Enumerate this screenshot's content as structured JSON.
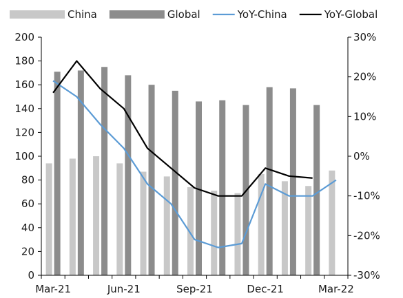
{
  "chart_data": {
    "type": "bar",
    "categories": [
      "Mar-21",
      "Apr-21",
      "May-21",
      "Jun-21",
      "Jul-21",
      "Aug-21",
      "Sep-21",
      "Oct-21",
      "Nov-21",
      "Dec-21",
      "Jan-22",
      "Feb-22",
      "Mar-22"
    ],
    "x_tick_labels": [
      "Mar-21",
      "Jun-21",
      "Sep-21",
      "Dec-21",
      "Mar-22"
    ],
    "ylim_left": [
      0,
      200
    ],
    "yticks_left": [
      0,
      20,
      40,
      60,
      80,
      100,
      120,
      140,
      160,
      180,
      200
    ],
    "ylim_right": [
      -0.3,
      0.3
    ],
    "yticks_right": [
      "-30%",
      "-20%",
      "-10%",
      "0%",
      "10%",
      "20%",
      "30%"
    ],
    "grid": false,
    "legend_position": "top",
    "series": [
      {
        "name": "China",
        "kind": "bar",
        "axis": "left",
        "color": "#c8c8c8",
        "values": [
          94,
          98,
          100,
          94,
          87,
          83,
          74,
          71,
          69,
          85,
          79,
          75,
          88
        ]
      },
      {
        "name": "Global",
        "kind": "bar",
        "axis": "left",
        "color": "#8c8c8c",
        "values": [
          171,
          172,
          175,
          168,
          160,
          155,
          146,
          147,
          143,
          158,
          157,
          143,
          null
        ]
      },
      {
        "name": "YoY-China",
        "kind": "line",
        "axis": "right",
        "color": "#5b9bd5",
        "values": [
          0.19,
          0.15,
          0.08,
          0.02,
          -0.07,
          -0.12,
          -0.21,
          -0.23,
          -0.22,
          -0.07,
          -0.1,
          -0.1,
          -0.06
        ]
      },
      {
        "name": "YoY-Global",
        "kind": "line",
        "axis": "right",
        "color": "#000000",
        "values": [
          0.16,
          0.24,
          0.17,
          0.12,
          0.02,
          -0.03,
          -0.08,
          -0.1,
          -0.1,
          -0.03,
          -0.05,
          -0.055,
          null
        ]
      }
    ]
  }
}
